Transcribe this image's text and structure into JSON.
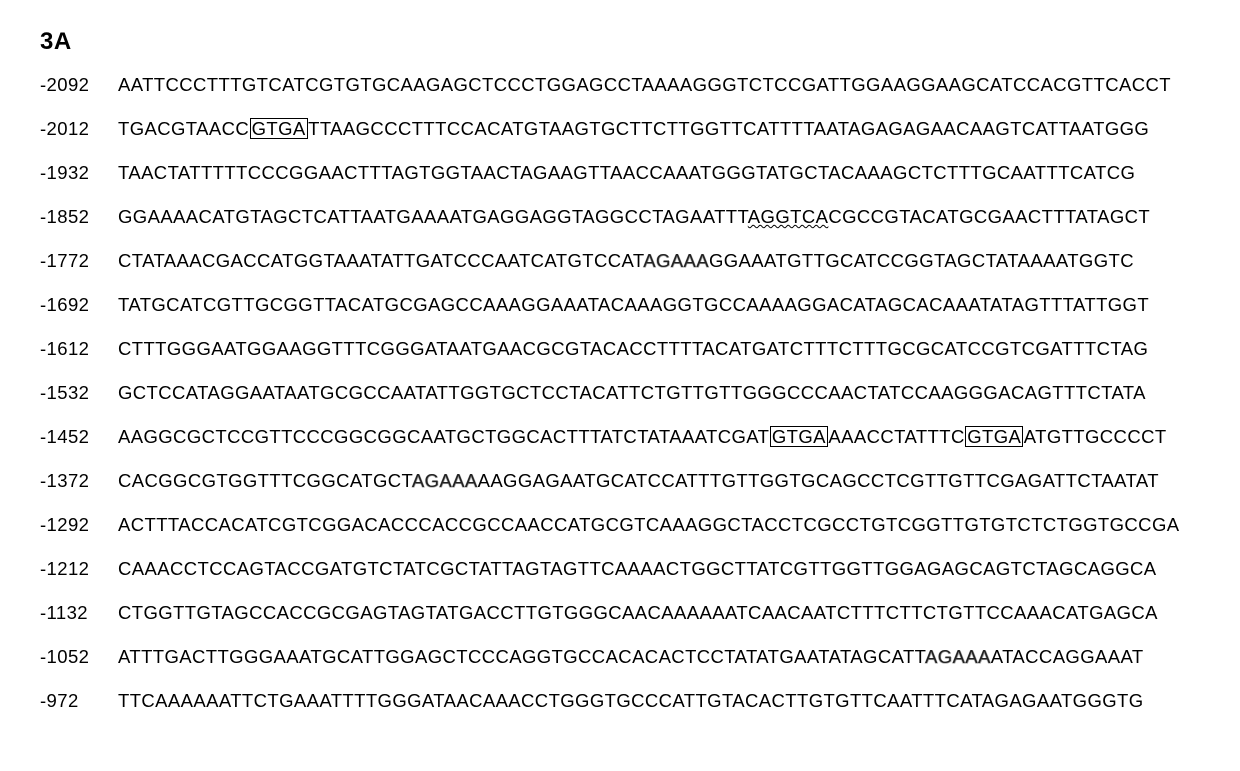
{
  "figure_label": "3A",
  "font": {
    "family": "Arial",
    "size_pt": 18.5,
    "label_size_pt": 24,
    "label_weight": "bold"
  },
  "colors": {
    "background": "#ffffff",
    "text": "#000000",
    "box_border": "#000000",
    "shadow": "#999999"
  },
  "motifs": {
    "boxed": "GTGA half-site (boxed)",
    "wavy": "AGGTCA (wavy underline)",
    "shadow": "AGAAA (shadowed/outlined)"
  },
  "rows": [
    {
      "pos": "-2092",
      "segs": [
        {
          "t": "AATTCCCTTTGTCATCGTGTGCAAGAGCTCCCTGGAGCCTAAAAGGGTCTCCGATTGGAAGGAAGCATCCACGTTCACCT"
        }
      ]
    },
    {
      "pos": "-2012",
      "segs": [
        {
          "t": "TGACGTAACC"
        },
        {
          "t": "GTGA",
          "style": "boxed"
        },
        {
          "t": "TTAAGCCCTTTCCACATGTAAGTGCTTCTTGGTTCATTTTAATAGAGAGAACAAGTCATTAATGGG"
        }
      ]
    },
    {
      "pos": "-1932",
      "segs": [
        {
          "t": "TAACTATTTTTCCCGGAACTTTAGTGGTAACTAGAAGTTAACCAAATGGGTATGCTACAAAGCTCTTTGCAATTTCATCG"
        }
      ]
    },
    {
      "pos": "-1852",
      "segs": [
        {
          "t": "GGAAAACATGTAGCTCATTAATGAAAATGAGGAGGTAGGCCTAGAATTT"
        },
        {
          "t": "AGGTCA",
          "style": "wavy"
        },
        {
          "t": "CGCCGTACATGCGAACTTTATAGCT"
        }
      ]
    },
    {
      "pos": "-1772",
      "segs": [
        {
          "t": "CTATAAACGACCATGGTAAATATTGATCCCAATCATGTCCAT"
        },
        {
          "t": "AGAAA",
          "style": "shadow"
        },
        {
          "t": "GGAAATGTTGCATCCGGTAGCTATAAAATGGTC"
        }
      ]
    },
    {
      "pos": "-1692",
      "segs": [
        {
          "t": "TATGCATCGTTGCGGTTACATGCGAGCCAAAGGAAATACAAAGGTGCCAAAAGGACATAGCACAAATATAGTTTATTGGT"
        }
      ]
    },
    {
      "pos": "-1612",
      "segs": [
        {
          "t": "CTTTGGGAATGGAAGGTTTCGGGATAATGAACGCGTACACCTTTTACATGATCTTTCTTTGCGCATCCGTCGATTTCTAG"
        }
      ]
    },
    {
      "pos": "-1532",
      "segs": [
        {
          "t": "GCTCCATAGGAATAATGCGCCAATATTGGTGCTCCTACATTCTGTTGTTGGGCCCAACTATCCAAGGGACAGTTTCTATA"
        }
      ]
    },
    {
      "pos": "-1452",
      "segs": [
        {
          "t": "AAGGCGCTCCGTTCCCGGCGGCAATGCTGGCACTTTATCTATAAATCGAT"
        },
        {
          "t": "GTGA",
          "style": "boxed"
        },
        {
          "t": "AAACCTATTTC"
        },
        {
          "t": "GTGA",
          "style": "boxed"
        },
        {
          "t": "ATGTTGCCCCT"
        }
      ]
    },
    {
      "pos": "-1372",
      "segs": [
        {
          "t": "CACGGCGTGGTTTCGGCATGCT"
        },
        {
          "t": "AGAAA",
          "style": "shadow"
        },
        {
          "t": "AAGGAGAATGCATCCATTTGTTGGTGCAGCCTCGTTGTTCGAGATTCTAATAT"
        }
      ]
    },
    {
      "pos": "-1292",
      "segs": [
        {
          "t": "ACTTTACCACATCGTCGGACACCCACCGCCAACCATGCGTCAAAGGCTACCTCGCCTGTCGGTTGTGTCTCTGGTGCCGA"
        }
      ]
    },
    {
      "pos": "-1212",
      "segs": [
        {
          "t": "CAAACCTCCAGTACCGATGTCTATCGCTATTAGTAGTTCAAAACTGGCTTATCGTTGGTTGGAGAGCAGTCTAGCAGGCA"
        }
      ]
    },
    {
      "pos": "-1132",
      "segs": [
        {
          "t": "CTGGTTGTAGCCACCGCGAGTAGTATGACCTTGTGGGCAACAAAAAATCAACAATCTTTCTTCTGTTCCAAACATGAGCA"
        }
      ]
    },
    {
      "pos": "-1052",
      "segs": [
        {
          "t": "ATTTGACTTGGGAAATGCATTGGAGCTCCCAGGTGCCACACACTCCTATATGAATATAGCATT"
        },
        {
          "t": "AGAAA",
          "style": "shadow"
        },
        {
          "t": "ATACCAGGAAAT"
        }
      ]
    },
    {
      "pos": "-972",
      "segs": [
        {
          "t": "TTCAAAAAATTCTGAAATTTTGGGATAACAAACCTGGGTGCCCATTGTACACTTGTGTTCAATTTCATAGAGAATGGGTG"
        }
      ]
    }
  ]
}
